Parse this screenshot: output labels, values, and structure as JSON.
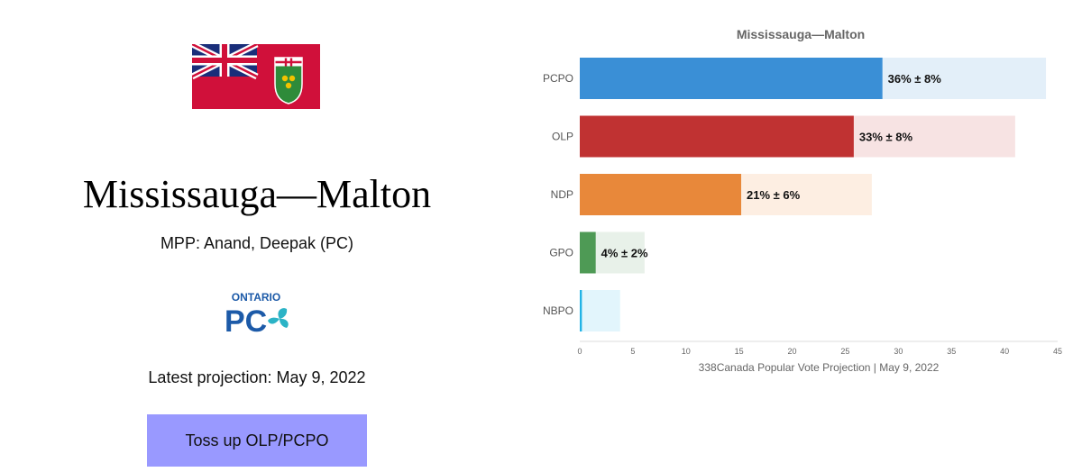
{
  "left_panel": {
    "riding_name": "Mississauga—Malton",
    "mpp": "MPP: Anand, Deepak (PC)",
    "party_logo": {
      "line1": "ONTARIO",
      "line2": "PC"
    },
    "latest_projection": "Latest projection: May 9, 2022",
    "status_label": "Toss up OLP/PCPO"
  },
  "colors": {
    "status_bg": "#9999ff",
    "flag_red": "#d0103a",
    "flag_blue": "#1a2e7a",
    "logo_blue": "#1c5aa8",
    "logo_leaf": "#2bb3c6"
  },
  "chart_data": {
    "type": "bar",
    "orientation": "horizontal",
    "title": "Mississauga—Malton",
    "xlabel": "338Canada Popular Vote Projection | May 9, 2022",
    "ylabel": "",
    "xlim": [
      0,
      45
    ],
    "xticks": [
      0,
      5,
      10,
      15,
      20,
      25,
      30,
      35,
      40,
      45
    ],
    "grid": false,
    "categories": [
      "PCPO",
      "OLP",
      "NDP",
      "GPO",
      "NBPO"
    ],
    "values": [
      28.5,
      25.8,
      15.2,
      1.5,
      0.2
    ],
    "upper": [
      43.9,
      41.0,
      27.5,
      6.1,
      3.8
    ],
    "labels": [
      "36% ± 8%",
      "33% ± 8%",
      "21% ± 6%",
      "4% ± 2%",
      ""
    ],
    "colors": [
      "#3a8fd6",
      "#c03232",
      "#e8883a",
      "#4e9a55",
      "#21b3e6"
    ],
    "range_colors": [
      "#e3eff9",
      "#f7e3e3",
      "#fdeee2",
      "#e8f1e9",
      "#e2f5fc"
    ]
  }
}
